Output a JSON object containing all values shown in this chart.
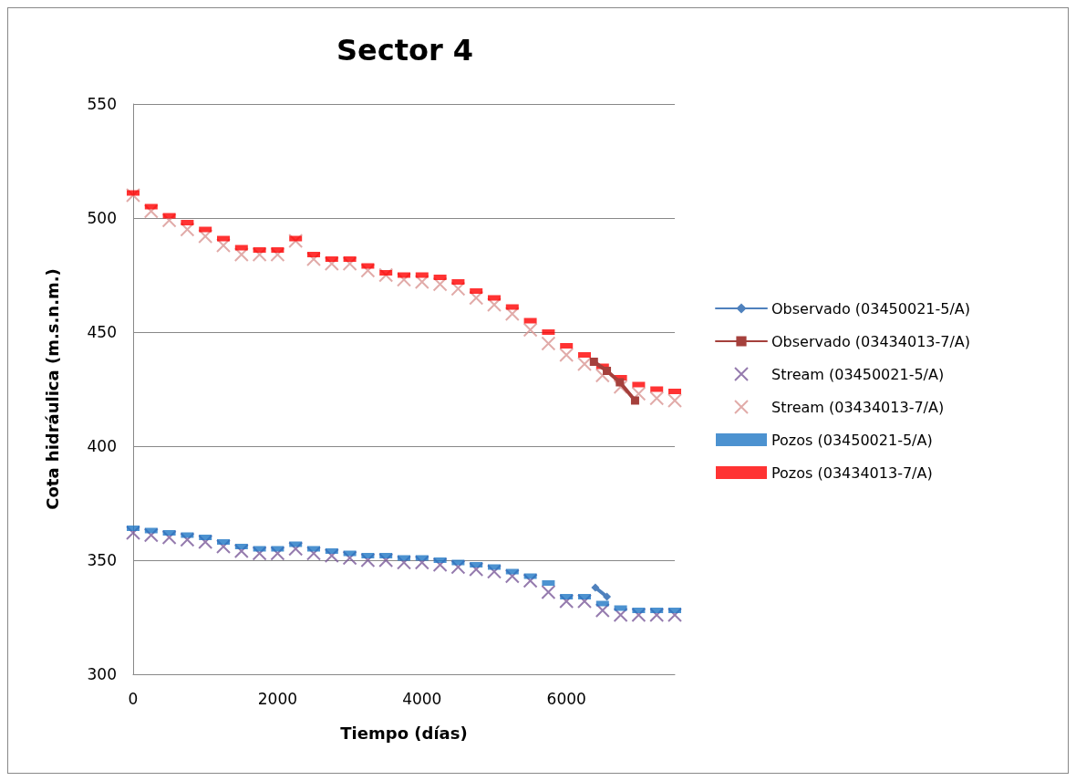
{
  "chart_data": {
    "type": "scatter",
    "title": "Sector 4",
    "xlabel": "Tiempo (días)",
    "ylabel": "Cota hidráulica (m.s.n.m.)",
    "xlim": [
      0,
      7500
    ],
    "xticks": [
      0,
      2000,
      4000,
      6000
    ],
    "ylim": [
      300,
      550
    ],
    "yticks": [
      300,
      350,
      400,
      450,
      500,
      550
    ],
    "grid": "y",
    "legend": "right",
    "series": [
      {
        "name": "Observado (03450021-5/A)",
        "type": "line",
        "marker": "diamond",
        "color": "#4f81bd",
        "x": [
          6400,
          6560
        ],
        "values": [
          338,
          334
        ]
      },
      {
        "name": "Observado (03434013-7/A)",
        "type": "line",
        "marker": "square",
        "color": "#a5403c",
        "x": [
          6380,
          6560,
          6740,
          6950
        ],
        "values": [
          437,
          433,
          428,
          420
        ]
      },
      {
        "name": "Stream (03450021-5/A)",
        "marker": "cross",
        "color": "#7a5a9a",
        "x": [
          0,
          250,
          500,
          750,
          1000,
          1250,
          1500,
          1750,
          2000,
          2250,
          2500,
          2750,
          3000,
          3250,
          3500,
          3750,
          4000,
          4250,
          4500,
          4750,
          5000,
          5250,
          5500,
          5750,
          6000,
          6250,
          6500,
          6750,
          7000,
          7250,
          7500
        ],
        "values": [
          362,
          361,
          360,
          359,
          358,
          356,
          354,
          353,
          353,
          355,
          353,
          352,
          351,
          350,
          350,
          349,
          349,
          348,
          347,
          346,
          345,
          343,
          341,
          336,
          332,
          332,
          328,
          326,
          326,
          326,
          326
        ]
      },
      {
        "name": "Stream (03434013-7/A)",
        "marker": "cross",
        "color": "#d99694",
        "x": [
          0,
          250,
          500,
          750,
          1000,
          1250,
          1500,
          1750,
          2000,
          2250,
          2500,
          2750,
          3000,
          3250,
          3500,
          3750,
          4000,
          4250,
          4500,
          4750,
          5000,
          5250,
          5500,
          5750,
          6000,
          6250,
          6500,
          6750,
          7000,
          7250,
          7500
        ],
        "values": [
          510,
          503,
          499,
          495,
          492,
          488,
          484,
          484,
          484,
          490,
          482,
          480,
          480,
          477,
          475,
          473,
          472,
          471,
          469,
          465,
          462,
          458,
          451,
          445,
          440,
          436,
          431,
          426,
          423,
          421,
          420
        ]
      },
      {
        "name": "Pozos (03450021-5/A)",
        "marker": "square",
        "color": "#1f77c4",
        "x": [
          0,
          250,
          500,
          750,
          1000,
          1250,
          1500,
          1750,
          2000,
          2250,
          2500,
          2750,
          3000,
          3250,
          3500,
          3750,
          4000,
          4250,
          4500,
          4750,
          5000,
          5250,
          5500,
          5750,
          6000,
          6250,
          6500,
          6750,
          7000,
          7250,
          7500
        ],
        "values": [
          364,
          363,
          362,
          361,
          360,
          358,
          356,
          355,
          355,
          357,
          355,
          354,
          353,
          352,
          352,
          351,
          351,
          350,
          349,
          348,
          347,
          345,
          343,
          340,
          334,
          334,
          331,
          329,
          328,
          328,
          328
        ]
      },
      {
        "name": "Pozos (03434013-7/A)",
        "marker": "square",
        "color": "#ff0000",
        "x": [
          0,
          250,
          500,
          750,
          1000,
          1250,
          1500,
          1750,
          2000,
          2250,
          2500,
          2750,
          3000,
          3250,
          3500,
          3750,
          4000,
          4250,
          4500,
          4750,
          5000,
          5250,
          5500,
          5750,
          6000,
          6250,
          6500,
          6750,
          7000,
          7250,
          7500
        ],
        "values": [
          511,
          505,
          501,
          498,
          495,
          491,
          487,
          486,
          486,
          491,
          484,
          482,
          482,
          479,
          476,
          475,
          475,
          474,
          472,
          468,
          465,
          461,
          455,
          450,
          444,
          440,
          435,
          430,
          427,
          425,
          424
        ]
      }
    ]
  }
}
